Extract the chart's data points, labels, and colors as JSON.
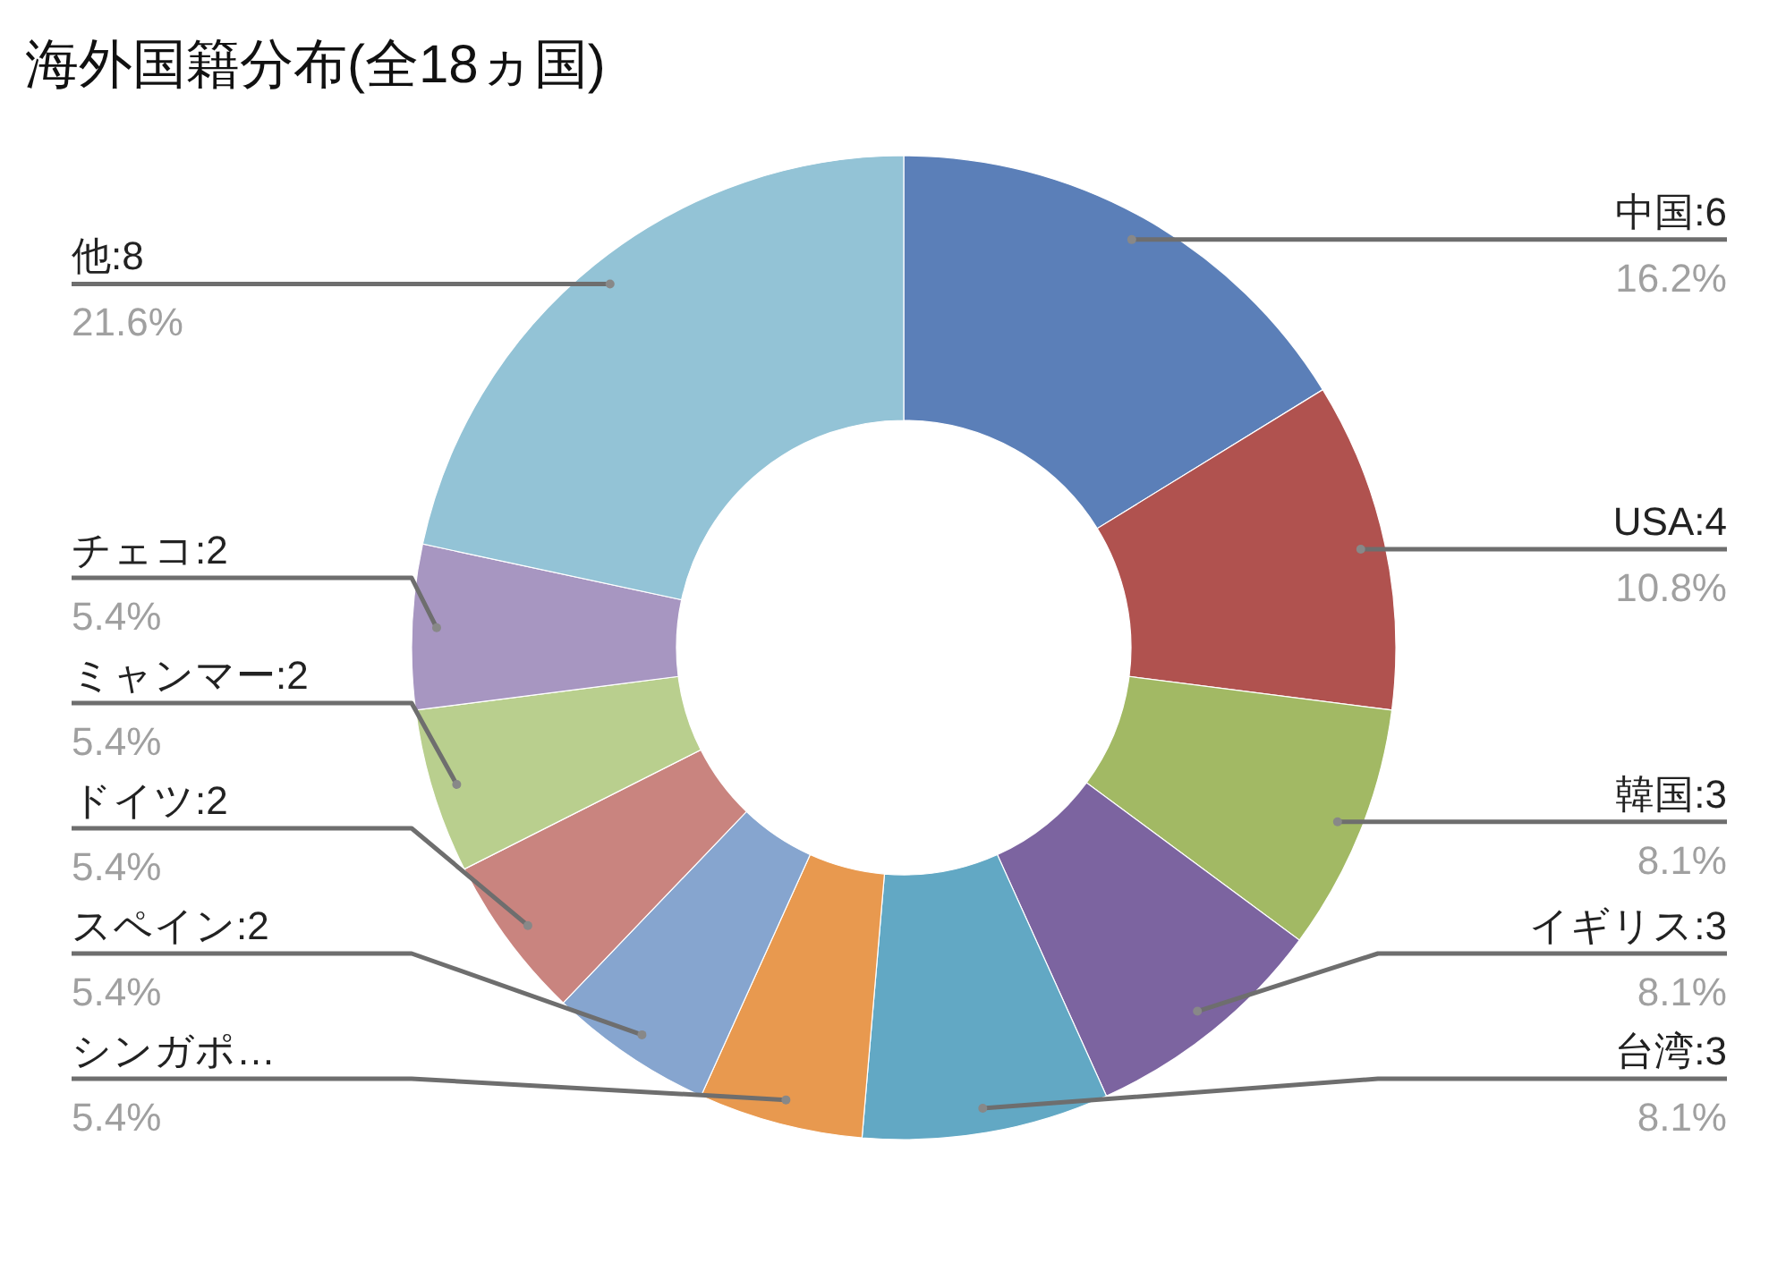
{
  "chart_data": {
    "type": "donut",
    "title": "海外国籍分布(全18ヵ国)",
    "categories": [
      "中国:6",
      "USA:4",
      "韓国:3",
      "イギリス:3",
      "台湾:3",
      "シンガポ…",
      "スペイン:2",
      "ドイツ:2",
      "ミャンマー:2",
      "チェコ:2",
      "他:8"
    ],
    "values": [
      16.2,
      10.8,
      8.1,
      8.1,
      8.1,
      5.4,
      5.4,
      5.4,
      5.4,
      5.4,
      21.6
    ],
    "value_labels": [
      "16.2%",
      "10.8%",
      "8.1%",
      "8.1%",
      "8.1%",
      "5.4%",
      "5.4%",
      "5.4%",
      "5.4%",
      "5.4%",
      "21.6%"
    ],
    "colors": [
      "#5b7fb8",
      "#b0524f",
      "#a2b964",
      "#7c64a0",
      "#62a8c4",
      "#e8994f",
      "#86a5cf",
      "#c9847f",
      "#b9cf8e",
      "#a796c1",
      "#93c3d6"
    ],
    "legend": false
  }
}
